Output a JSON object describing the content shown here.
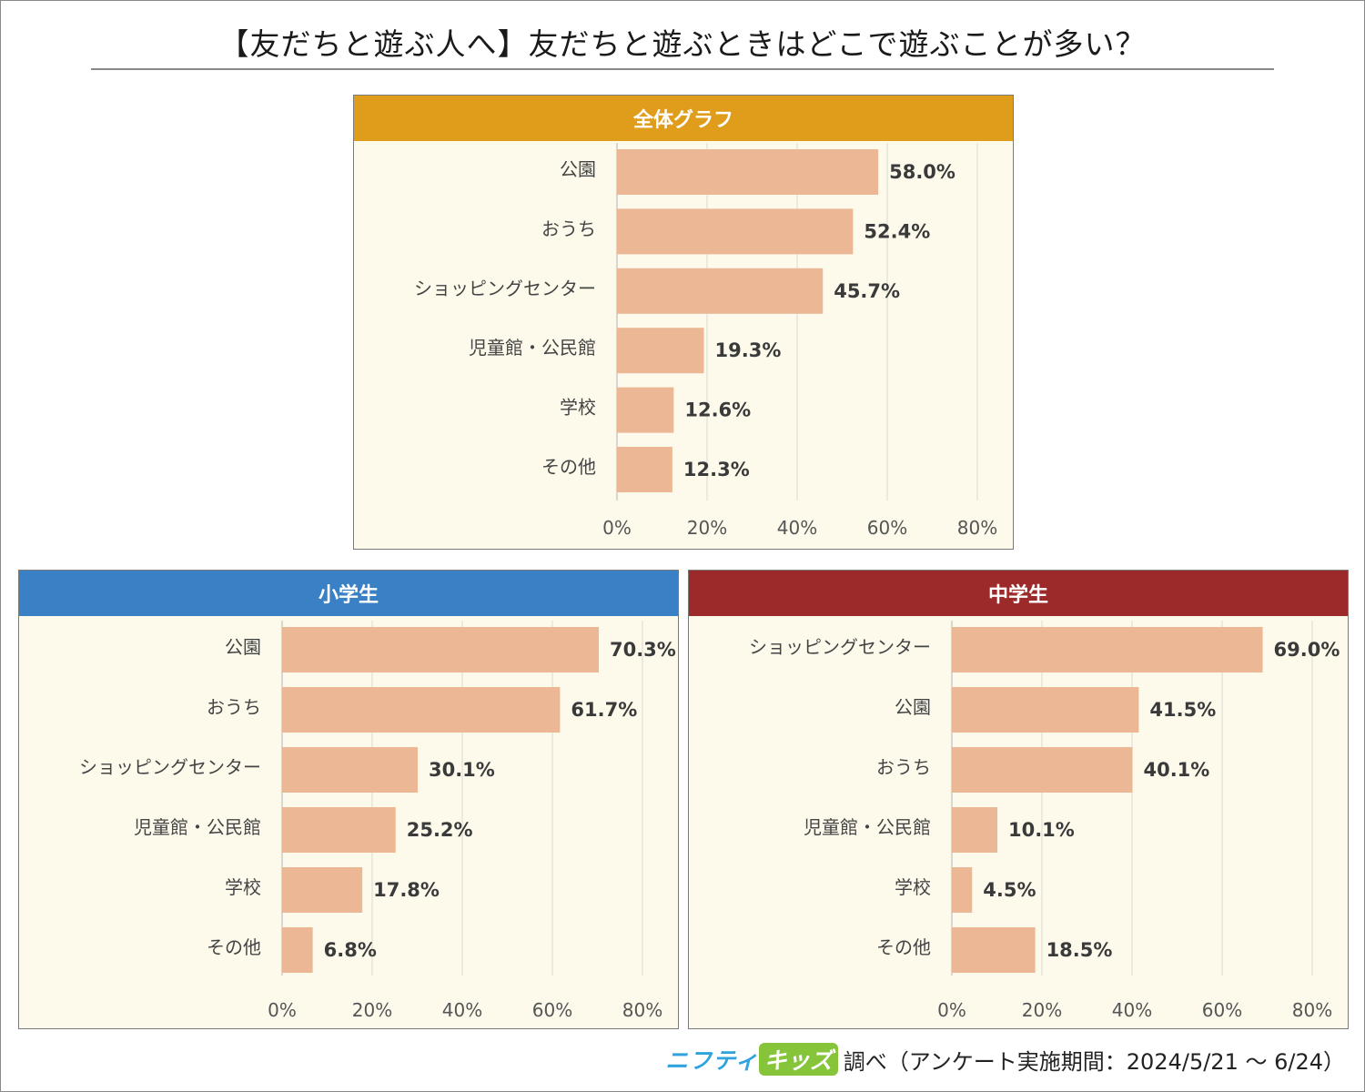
{
  "title": "【友だちと遊ぶ人へ】友だちと遊ぶときはどこで遊ぶことが多い？",
  "footer": {
    "brand_main": "ニフティ",
    "brand_kids": "キッズ",
    "text": "調べ（アンケート実施期間：2024/5/21 ～ 6/24）"
  },
  "colors": {
    "bar": "#ecb794",
    "header_overall": "#e09d1b",
    "header_elementary": "#3a80c4",
    "header_junior": "#9c2a2a"
  },
  "chart_data": [
    {
      "type": "bar",
      "orientation": "horizontal",
      "title": "全体グラフ",
      "categories": [
        "公園",
        "おうち",
        "ショッピングセンター",
        "児童館・公民館",
        "学校",
        "その他"
      ],
      "values": [
        58.0,
        52.4,
        45.7,
        19.3,
        12.6,
        12.3
      ],
      "value_labels": [
        "58.0%",
        "52.4%",
        "45.7%",
        "19.3%",
        "12.6%",
        "12.3%"
      ],
      "xlim": [
        0,
        80
      ],
      "xticks": [
        "0%",
        "20%",
        "40%",
        "60%",
        "80%"
      ],
      "grid": true
    },
    {
      "type": "bar",
      "orientation": "horizontal",
      "title": "小学生",
      "categories": [
        "公園",
        "おうち",
        "ショッピングセンター",
        "児童館・公民館",
        "学校",
        "その他"
      ],
      "values": [
        70.3,
        61.7,
        30.1,
        25.2,
        17.8,
        6.8
      ],
      "value_labels": [
        "70.3%",
        "61.7%",
        "30.1%",
        "25.2%",
        "17.8%",
        "6.8%"
      ],
      "xlim": [
        0,
        80
      ],
      "xticks": [
        "0%",
        "20%",
        "40%",
        "60%",
        "80%"
      ],
      "grid": true
    },
    {
      "type": "bar",
      "orientation": "horizontal",
      "title": "中学生",
      "categories": [
        "ショッピングセンター",
        "公園",
        "おうち",
        "児童館・公民館",
        "学校",
        "その他"
      ],
      "values": [
        69.0,
        41.5,
        40.1,
        10.1,
        4.5,
        18.5
      ],
      "value_labels": [
        "69.0%",
        "41.5%",
        "40.1%",
        "10.1%",
        "4.5%",
        "18.5%"
      ],
      "xlim": [
        0,
        80
      ],
      "xticks": [
        "0%",
        "20%",
        "40%",
        "60%",
        "80%"
      ],
      "grid": true
    }
  ]
}
